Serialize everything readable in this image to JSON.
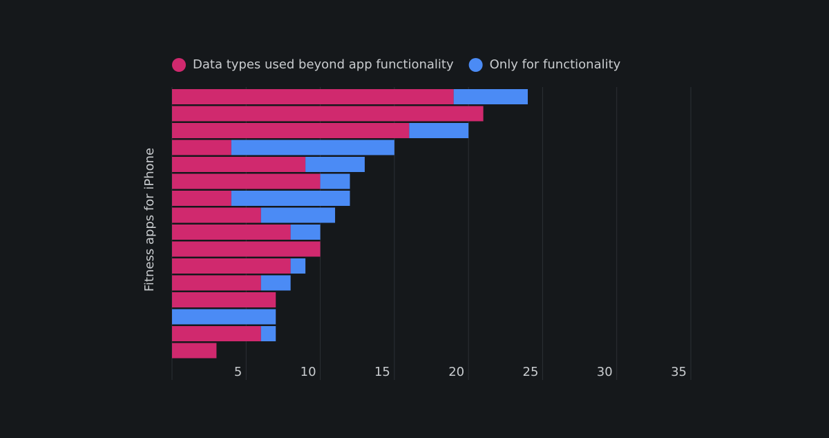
{
  "chart_data": {
    "type": "bar",
    "orientation": "horizontal",
    "stacked": true,
    "y_label": "Fitness apps for iPhone",
    "categories": [
      null,
      null,
      null,
      null,
      null,
      null,
      null,
      null,
      null,
      null,
      null,
      null,
      null,
      null,
      null,
      null
    ],
    "series": [
      {
        "name": "Data types used beyond app functionality",
        "color": "#d0296e",
        "values": [
          19,
          21,
          16,
          4,
          9,
          10,
          4,
          6,
          8,
          10,
          8,
          6,
          7,
          0,
          6,
          3
        ]
      },
      {
        "name": "Only for functionality",
        "color": "#4b8bf5",
        "values": [
          5,
          0,
          4,
          11,
          4,
          2,
          8,
          5,
          2,
          0,
          1,
          2,
          0,
          7,
          1,
          0
        ]
      }
    ],
    "xlim": [
      0,
      35
    ],
    "xticks": [
      5,
      10,
      15,
      20,
      25,
      30,
      35
    ],
    "grid": true,
    "legend": "top"
  }
}
